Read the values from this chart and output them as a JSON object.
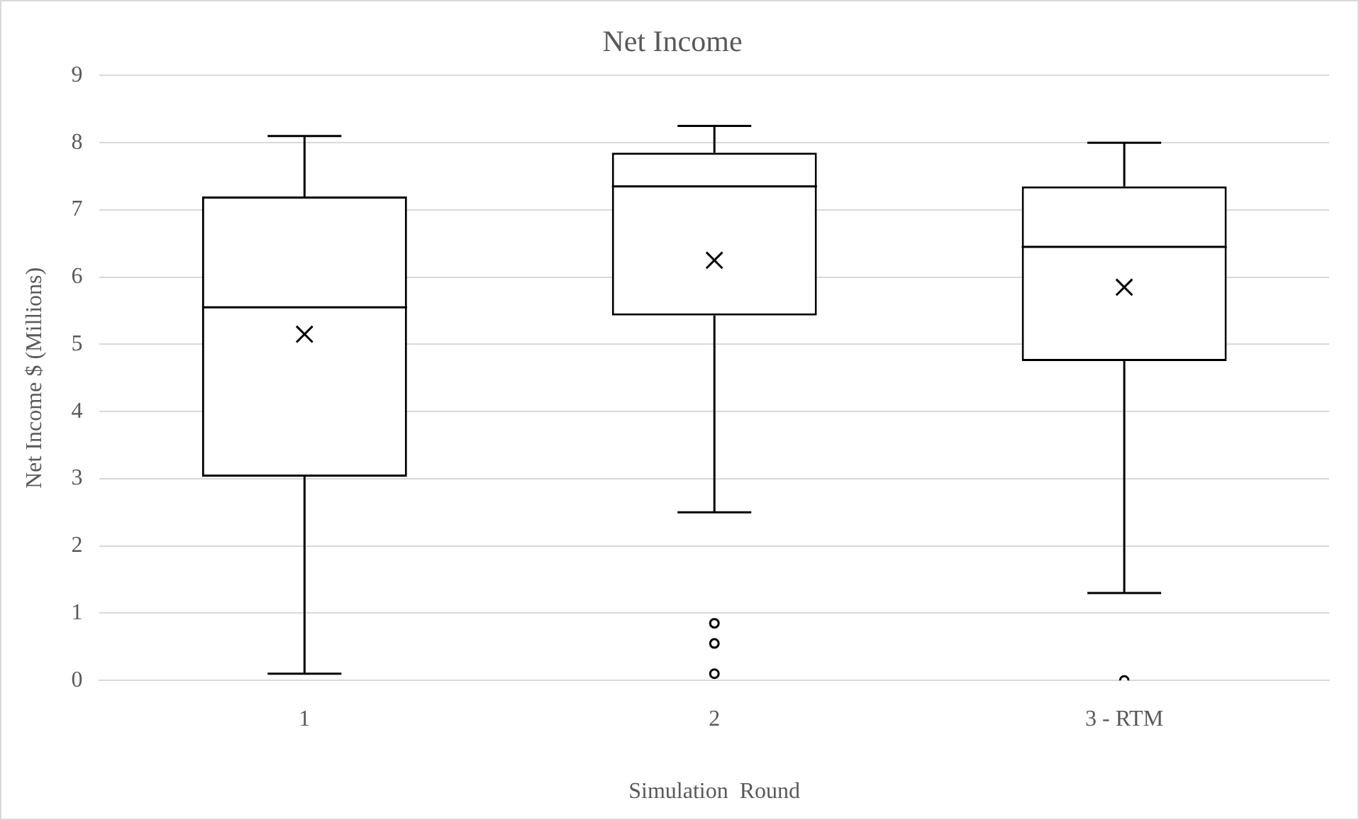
{
  "chart_data": {
    "type": "box",
    "title": "Net Income",
    "xlabel": "Simulation  Round",
    "ylabel": "Net Income $ (Millions)",
    "categories": [
      "1",
      "2",
      "3 - RTM"
    ],
    "boxes": [
      {
        "low": 0.1,
        "q1": 3.03,
        "median": 5.55,
        "q3": 7.2,
        "high": 8.1,
        "mean": 5.15
      },
      {
        "low": 2.5,
        "q1": 5.43,
        "median": 7.35,
        "q3": 7.85,
        "high": 8.25,
        "mean": 6.25,
        "outliers": [
          0.85,
          0.55,
          0.1
        ]
      },
      {
        "low": 1.3,
        "q1": 4.75,
        "median": 6.45,
        "q3": 7.35,
        "high": 8.0,
        "mean": 5.85,
        "outliers": [
          0.0
        ]
      }
    ],
    "ylim": [
      0,
      9
    ],
    "yticks": [
      0,
      1,
      2,
      3,
      4,
      5,
      6,
      7,
      8,
      9
    ],
    "grid": "y",
    "legend": false
  }
}
